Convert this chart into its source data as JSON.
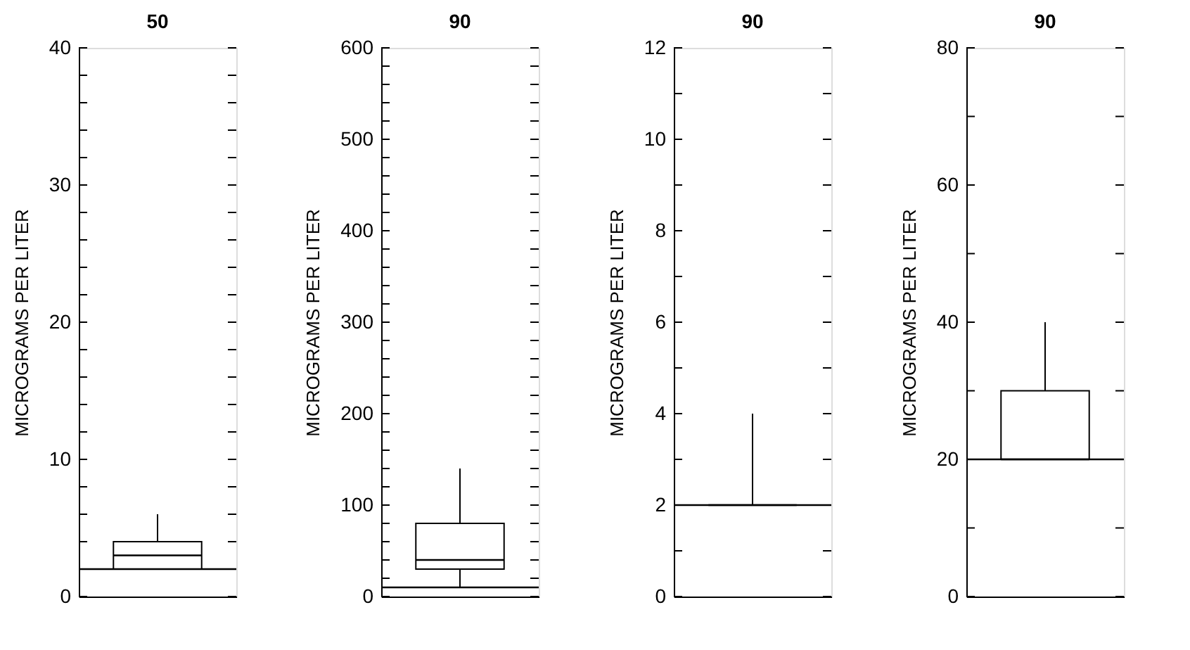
{
  "chart_data": [
    {
      "type": "box",
      "title": "50",
      "ylabel": "MICROGRAMS PER LITER",
      "categories": [
        null
      ],
      "boxes": [
        {
          "low": 2,
          "q1": 2,
          "median": 3,
          "q3": 4,
          "high": 6
        }
      ],
      "ylim": [
        0,
        40
      ],
      "yticks": [
        0,
        {
          "value": 2,
          "label": null
        },
        {
          "value": 4,
          "label": null
        },
        {
          "value": 6,
          "label": null
        },
        {
          "value": 8,
          "label": null
        },
        10,
        {
          "value": 12,
          "label": null
        },
        {
          "value": 14,
          "label": null
        },
        {
          "value": 16,
          "label": null
        },
        {
          "value": 18,
          "label": null
        },
        20,
        {
          "value": 22,
          "label": null
        },
        {
          "value": 24,
          "label": null
        },
        {
          "value": 26,
          "label": null
        },
        {
          "value": 28,
          "label": null
        },
        30,
        {
          "value": 32,
          "label": null
        },
        {
          "value": 34,
          "label": null
        },
        {
          "value": 36,
          "label": null
        },
        {
          "value": 38,
          "label": null
        },
        40
      ],
      "ref_lines": [
        {
          "axis": "y",
          "value": 2,
          "color": "#000000"
        }
      ],
      "grid": false,
      "tick_labels": "y"
    },
    {
      "type": "box",
      "title": "90",
      "ylabel": "MICROGRAMS PER LITER",
      "categories": [
        null
      ],
      "boxes": [
        {
          "low": 10,
          "q1": 30,
          "median": 40,
          "q3": 80,
          "high": 140
        }
      ],
      "ylim": [
        0,
        600
      ],
      "yticks": [
        0,
        {
          "value": 20,
          "label": null
        },
        {
          "value": 40,
          "label": null
        },
        {
          "value": 60,
          "label": null
        },
        {
          "value": 80,
          "label": null
        },
        100,
        {
          "value": 120,
          "label": null
        },
        {
          "value": 140,
          "label": null
        },
        {
          "value": 160,
          "label": null
        },
        {
          "value": 180,
          "label": null
        },
        200,
        {
          "value": 220,
          "label": null
        },
        {
          "value": 240,
          "label": null
        },
        {
          "value": 260,
          "label": null
        },
        {
          "value": 280,
          "label": null
        },
        300,
        {
          "value": 320,
          "label": null
        },
        {
          "value": 340,
          "label": null
        },
        {
          "value": 360,
          "label": null
        },
        {
          "value": 380,
          "label": null
        },
        400,
        {
          "value": 420,
          "label": null
        },
        {
          "value": 440,
          "label": null
        },
        {
          "value": 460,
          "label": null
        },
        {
          "value": 480,
          "label": null
        },
        500,
        {
          "value": 520,
          "label": null
        },
        {
          "value": 540,
          "label": null
        },
        {
          "value": 560,
          "label": null
        },
        {
          "value": 580,
          "label": null
        },
        600
      ],
      "ref_lines": [
        {
          "axis": "y",
          "value": 10,
          "color": "#000000"
        }
      ],
      "grid": false,
      "tick_labels": "y"
    },
    {
      "type": "box",
      "title": "90",
      "ylabel": "MICROGRAMS PER LITER",
      "categories": [
        null
      ],
      "boxes": [
        {
          "low": 2,
          "q1": 2,
          "median": 2,
          "q3": 2,
          "high": 4
        }
      ],
      "ylim": [
        0,
        12
      ],
      "yticks": [
        0,
        {
          "value": 1,
          "label": null
        },
        2,
        {
          "value": 3,
          "label": null
        },
        4,
        {
          "value": 5,
          "label": null
        },
        6,
        {
          "value": 7,
          "label": null
        },
        8,
        {
          "value": 9,
          "label": null
        },
        10,
        {
          "value": 11,
          "label": null
        },
        12
      ],
      "ref_lines": [
        {
          "axis": "y",
          "value": 2,
          "color": "#000000"
        }
      ],
      "grid": false,
      "tick_labels": "y"
    },
    {
      "type": "box",
      "title": "90",
      "ylabel": "MICROGRAMS PER LITER",
      "categories": [
        null
      ],
      "boxes": [
        {
          "low": 20,
          "q1": 20,
          "median": 20,
          "q3": 30,
          "high": 40
        }
      ],
      "ylim": [
        0,
        80
      ],
      "yticks": [
        0,
        {
          "value": 10,
          "label": null
        },
        20,
        {
          "value": 30,
          "label": null
        },
        40,
        {
          "value": 50,
          "label": null
        },
        60,
        {
          "value": 70,
          "label": null
        },
        80
      ],
      "ref_lines": [
        {
          "axis": "y",
          "value": 20,
          "color": "#000000"
        }
      ],
      "grid": false,
      "tick_labels": "y"
    }
  ]
}
